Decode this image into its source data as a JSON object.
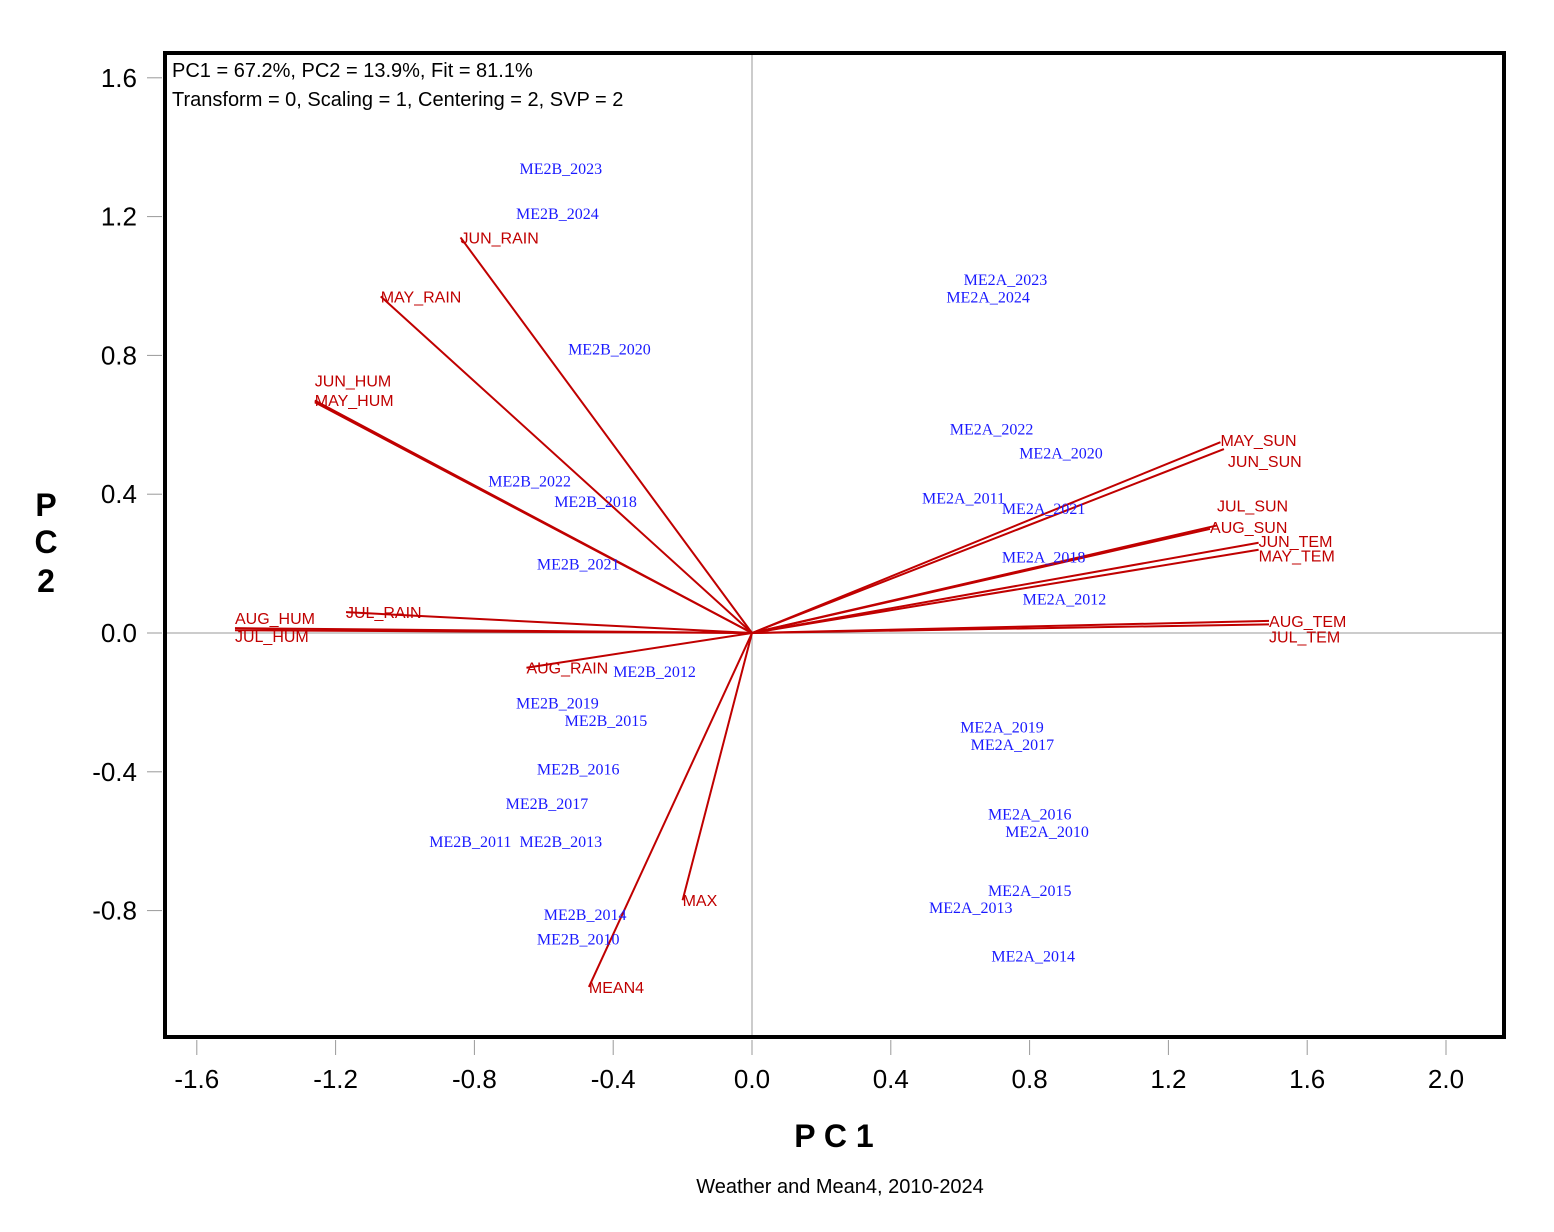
{
  "chart_data": {
    "type": "scatter",
    "subtype": "biplot",
    "title": "",
    "caption": "Weather and Mean4, 2010-2024",
    "xlabel": "P C 1",
    "ylabel": [
      "P",
      "C",
      "2"
    ],
    "info_lines": [
      "PC1 = 67.2%, PC2 = 13.9%, Fit = 81.1%",
      "Transform = 0, Scaling = 1, Centering = 2, SVP = 2"
    ],
    "xlim": [
      -1.69,
      2.17
    ],
    "ylim": [
      -1.17,
      1.66
    ],
    "x_ticks": [
      -1.6,
      -1.2,
      -0.8,
      -0.4,
      0.0,
      0.4,
      0.8,
      1.2,
      1.6,
      2.0
    ],
    "x_tick_labels": [
      "-1.6",
      "-1.2",
      "-0.8",
      "-0.4",
      "0.0",
      "0.4",
      "0.8",
      "1.2",
      "1.6",
      "2.0"
    ],
    "y_ticks": [
      1.6,
      1.2,
      0.8,
      0.4,
      0.0,
      -0.4,
      -0.8
    ],
    "y_tick_labels": [
      "1.6",
      "1.2",
      "0.8",
      "0.4",
      "0.0",
      "-0.4",
      "-0.8"
    ],
    "grid": false,
    "colors": {
      "vectors": "#c00000",
      "observations": "#1a1aff",
      "frame": "#000000",
      "origin_lines": "#999999"
    },
    "vectors": [
      {
        "name": "MAY_SUN",
        "x": 1.35,
        "y": 0.55
      },
      {
        "name": "JUN_SUN",
        "x": 1.36,
        "y": 0.53
      },
      {
        "name": "JUL_SUN",
        "x": 1.34,
        "y": 0.31
      },
      {
        "name": "AUG_SUN",
        "x": 1.32,
        "y": 0.3
      },
      {
        "name": "JUN_TEM",
        "x": 1.46,
        "y": 0.26
      },
      {
        "name": "MAY_TEM",
        "x": 1.46,
        "y": 0.24
      },
      {
        "name": "AUG_TEM",
        "x": 1.49,
        "y": 0.035
      },
      {
        "name": "JUL_TEM",
        "x": 1.49,
        "y": 0.025
      },
      {
        "name": "JUN_RAIN",
        "x": -0.84,
        "y": 1.14
      },
      {
        "name": "MAY_RAIN",
        "x": -1.07,
        "y": 0.97
      },
      {
        "name": "JUN_HUM",
        "x": -1.26,
        "y": 0.67
      },
      {
        "name": "MAY_HUM",
        "x": -1.26,
        "y": 0.665
      },
      {
        "name": "JUL_RAIN",
        "x": -1.17,
        "y": 0.06
      },
      {
        "name": "AUG_HUM",
        "x": -1.49,
        "y": 0.014
      },
      {
        "name": "JUL_HUM",
        "x": -1.49,
        "y": 0.008
      },
      {
        "name": "AUG_RAIN",
        "x": -0.65,
        "y": -0.1
      },
      {
        "name": "MAX",
        "x": -0.2,
        "y": -0.77
      },
      {
        "name": "MEAN4",
        "x": -0.47,
        "y": -1.02
      }
    ],
    "vector_label_offsets_note": "labels drawn at vector tips",
    "observations": [
      {
        "name": "ME2B_2023",
        "x": -0.67,
        "y": 1.34
      },
      {
        "name": "ME2B_2024",
        "x": -0.68,
        "y": 1.21
      },
      {
        "name": "ME2B_2020",
        "x": -0.53,
        "y": 0.82
      },
      {
        "name": "ME2B_2022",
        "x": -0.76,
        "y": 0.44
      },
      {
        "name": "ME2B_2018",
        "x": -0.57,
        "y": 0.38
      },
      {
        "name": "ME2B_2021",
        "x": -0.62,
        "y": 0.2
      },
      {
        "name": "ME2B_2012",
        "x": -0.4,
        "y": -0.11
      },
      {
        "name": "ME2B_2019",
        "x": -0.68,
        "y": -0.2
      },
      {
        "name": "ME2B_2015",
        "x": -0.54,
        "y": -0.25
      },
      {
        "name": "ME2B_2016",
        "x": -0.62,
        "y": -0.39
      },
      {
        "name": "ME2B_2017",
        "x": -0.71,
        "y": -0.49
      },
      {
        "name": "ME2B_2011",
        "x": -0.93,
        "y": -0.6
      },
      {
        "name": "ME2B_2013",
        "x": -0.67,
        "y": -0.6
      },
      {
        "name": "ME2B_2014",
        "x": -0.6,
        "y": -0.81
      },
      {
        "name": "ME2B_2010",
        "x": -0.62,
        "y": -0.88
      },
      {
        "name": "ME2A_2023",
        "x": 0.61,
        "y": 1.02
      },
      {
        "name": "ME2A_2024",
        "x": 0.56,
        "y": 0.97
      },
      {
        "name": "ME2A_2022",
        "x": 0.57,
        "y": 0.59
      },
      {
        "name": "ME2A_2020",
        "x": 0.77,
        "y": 0.52
      },
      {
        "name": "ME2A_2011",
        "x": 0.49,
        "y": 0.39
      },
      {
        "name": "ME2A_2021",
        "x": 0.72,
        "y": 0.36
      },
      {
        "name": "ME2A_2018",
        "x": 0.72,
        "y": 0.22
      },
      {
        "name": "ME2A_2012",
        "x": 0.78,
        "y": 0.1
      },
      {
        "name": "ME2A_2019",
        "x": 0.6,
        "y": -0.27
      },
      {
        "name": "ME2A_2017",
        "x": 0.63,
        "y": -0.32
      },
      {
        "name": "ME2A_2016",
        "x": 0.68,
        "y": -0.52
      },
      {
        "name": "ME2A_2010",
        "x": 0.73,
        "y": -0.57
      },
      {
        "name": "ME2A_2015",
        "x": 0.68,
        "y": -0.74
      },
      {
        "name": "ME2A_2013",
        "x": 0.51,
        "y": -0.79
      },
      {
        "name": "ME2A_2014",
        "x": 0.69,
        "y": -0.93
      }
    ]
  }
}
